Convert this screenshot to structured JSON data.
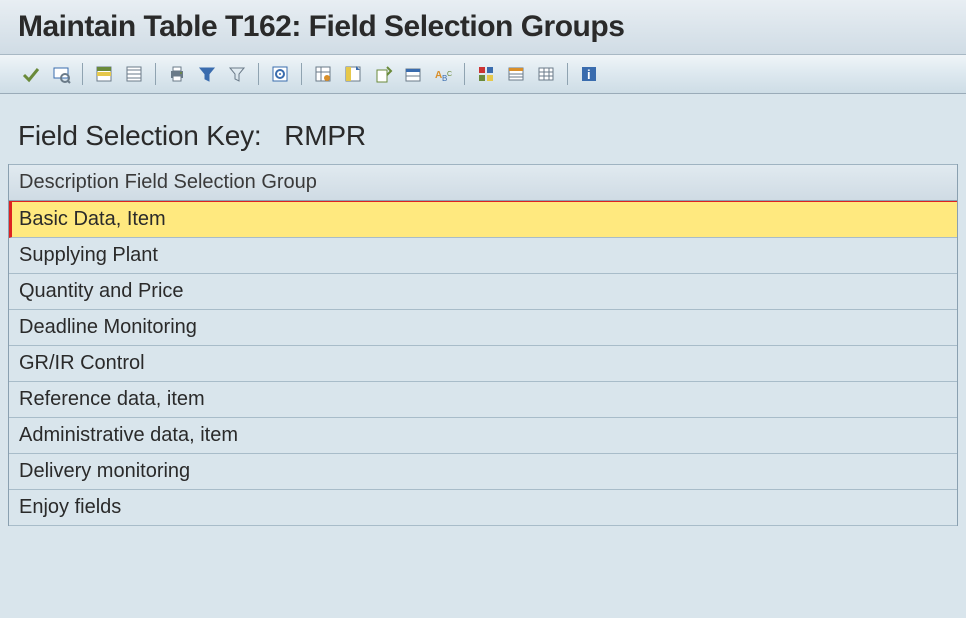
{
  "title": "Maintain Table T162: Field Selection Groups",
  "sub_header": {
    "label": "Field Selection Key:",
    "value": "RMPR"
  },
  "toolbar": {
    "groups": [
      [
        "accept",
        "print-preview"
      ],
      [
        "select-all",
        "deselect-all"
      ],
      [
        "print",
        "filter",
        "filter-clear"
      ],
      [
        "details"
      ],
      [
        "table-settings",
        "column-config",
        "export",
        "variant",
        "abc-analysis"
      ],
      [
        "grid-view",
        "list-view",
        "spreadsheet"
      ],
      [
        "info"
      ]
    ],
    "icons": {
      "accept": "accept",
      "print-preview": "print-preview",
      "select-all": "select-all",
      "deselect-all": "deselect-all",
      "print": "print",
      "filter": "filter",
      "filter-clear": "filter-clear",
      "details": "details",
      "table-settings": "table-settings",
      "column-config": "column-config",
      "export": "export",
      "variant": "variant",
      "abc-analysis": "abc-analysis",
      "grid-view": "grid-view",
      "list-view": "list-view",
      "spreadsheet": "spreadsheet",
      "info": "info"
    }
  },
  "table": {
    "columns": [
      "Description",
      "Field Selection Group"
    ],
    "header_text": "Description  Field Selection Group",
    "rows": [
      {
        "label": "Basic Data, Item",
        "selected": true
      },
      {
        "label": "Supplying Plant",
        "selected": false
      },
      {
        "label": "Quantity and Price",
        "selected": false
      },
      {
        "label": "Deadline Monitoring",
        "selected": false
      },
      {
        "label": "GR/IR Control",
        "selected": false
      },
      {
        "label": "Reference data, item",
        "selected": false
      },
      {
        "label": "Administrative data, item",
        "selected": false
      },
      {
        "label": "Delivery monitoring",
        "selected": false
      },
      {
        "label": "Enjoy fields",
        "selected": false
      }
    ],
    "row_selected_bg": "#ffe97f",
    "row_bg": "#d9e5ec",
    "border_color": "#a8bcc9",
    "selected_marker_color": "#d22"
  },
  "colors": {
    "app_bg": "#d9e5ec",
    "title_gradient_top": "#e8eef3",
    "title_gradient_bottom": "#d0dce5",
    "toolbar_gradient_top": "#f0f5f8",
    "toolbar_gradient_bottom": "#ceddE6",
    "text": "#2a2a2a",
    "divider": "#8fa3b1"
  },
  "typography": {
    "title_fontsize": 30,
    "subheader_fontsize": 28,
    "row_fontsize": 20
  }
}
